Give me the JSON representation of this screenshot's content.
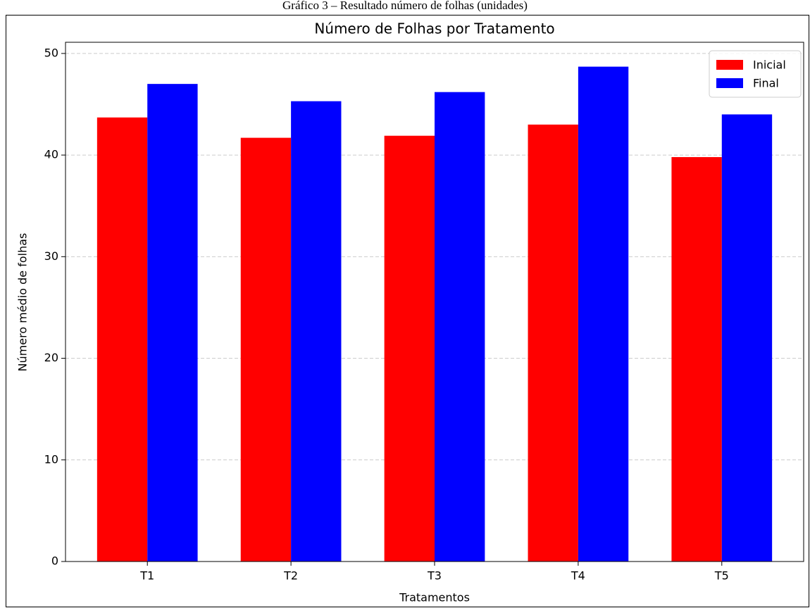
{
  "caption": "Gráfico 3 – Resultado número de folhas (unidades)",
  "chart_data": {
    "type": "bar",
    "title": "Número de Folhas por Tratamento",
    "x_label": "Tratamentos",
    "y_label": "Número médio de folhas",
    "categories": [
      "T1",
      "T2",
      "T3",
      "T4",
      "T5"
    ],
    "series": [
      {
        "name": "Inicial",
        "color": "#ff0000",
        "values": [
          43.7,
          41.7,
          41.9,
          43.0,
          39.8
        ]
      },
      {
        "name": "Final",
        "color": "#0000ff",
        "values": [
          47.0,
          45.3,
          46.2,
          48.7,
          44.0
        ]
      }
    ],
    "ylim": [
      0,
      51.1
    ],
    "yticks": [
      0,
      10,
      20,
      30,
      40,
      50
    ],
    "grid": true,
    "legend": "upper right"
  }
}
